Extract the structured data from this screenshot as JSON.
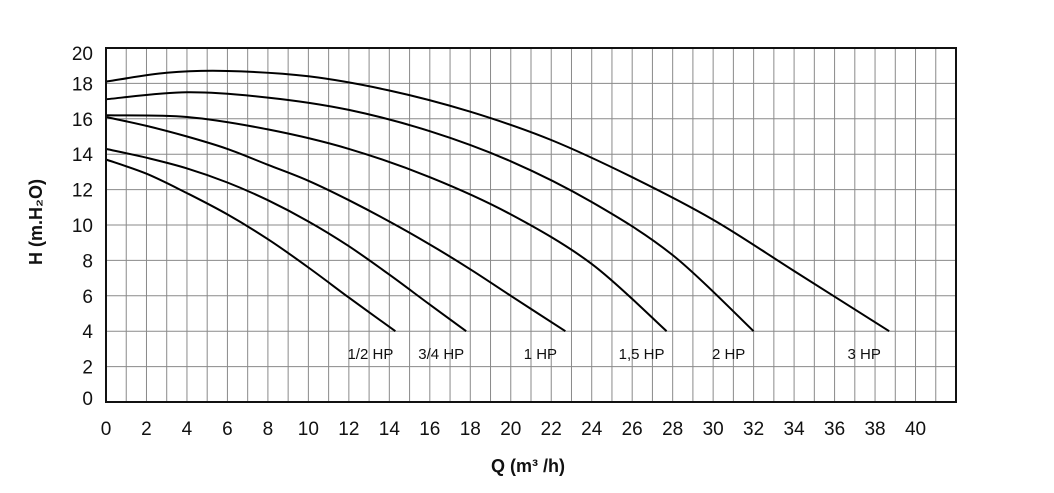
{
  "chart_data": {
    "type": "line",
    "title": "",
    "xlabel": "Q (m³ /h)",
    "ylabel": "H (m.H₂O)",
    "xlim": [
      0,
      42
    ],
    "ylim": [
      0,
      20
    ],
    "x_ticks": [
      "0",
      "2",
      "4",
      "6",
      "8",
      "10",
      "12",
      "14",
      "16",
      "18",
      "20",
      "22",
      "24",
      "26",
      "28",
      "30",
      "32",
      "34",
      "36",
      "38",
      "40"
    ],
    "y_ticks": [
      "0",
      "2",
      "4",
      "6",
      "8",
      "10",
      "12",
      "14",
      "16",
      "18",
      "20"
    ],
    "grid": true,
    "legend": "inline labels below curve ends",
    "series": [
      {
        "name": "1/2 HP",
        "points": [
          [
            0,
            13.7
          ],
          [
            2,
            12.9
          ],
          [
            4,
            11.8
          ],
          [
            6,
            10.6
          ],
          [
            8,
            9.2
          ],
          [
            10,
            7.6
          ],
          [
            12,
            5.9
          ],
          [
            14.3,
            4.0
          ]
        ]
      },
      {
        "name": "3/4 HP",
        "points": [
          [
            0,
            14.3
          ],
          [
            2,
            13.8
          ],
          [
            4,
            13.2
          ],
          [
            6,
            12.4
          ],
          [
            8,
            11.4
          ],
          [
            10,
            10.2
          ],
          [
            12,
            8.8
          ],
          [
            14,
            7.2
          ],
          [
            16,
            5.5
          ],
          [
            17.8,
            4.0
          ]
        ]
      },
      {
        "name": "1 HP",
        "points": [
          [
            0,
            16.1
          ],
          [
            2,
            15.6
          ],
          [
            4,
            15.0
          ],
          [
            6,
            14.3
          ],
          [
            8,
            13.4
          ],
          [
            10,
            12.5
          ],
          [
            12,
            11.4
          ],
          [
            14,
            10.2
          ],
          [
            16,
            8.9
          ],
          [
            18,
            7.5
          ],
          [
            20,
            6.0
          ],
          [
            22.7,
            4.0
          ]
        ]
      },
      {
        "name": "1,5 HP",
        "points": [
          [
            0,
            16.2
          ],
          [
            4,
            16.1
          ],
          [
            8,
            15.4
          ],
          [
            12,
            14.3
          ],
          [
            16,
            12.7
          ],
          [
            20,
            10.6
          ],
          [
            24,
            7.8
          ],
          [
            27.7,
            4.0
          ]
        ]
      },
      {
        "name": "2 HP",
        "points": [
          [
            0,
            17.1
          ],
          [
            4,
            17.5
          ],
          [
            8,
            17.2
          ],
          [
            12,
            16.5
          ],
          [
            16,
            15.3
          ],
          [
            20,
            13.6
          ],
          [
            24,
            11.3
          ],
          [
            28,
            8.3
          ],
          [
            32,
            4.0
          ]
        ]
      },
      {
        "name": "3 HP",
        "points": [
          [
            0,
            18.1
          ],
          [
            3,
            18.6
          ],
          [
            6,
            18.7
          ],
          [
            10,
            18.4
          ],
          [
            14,
            17.6
          ],
          [
            18,
            16.4
          ],
          [
            22,
            14.8
          ],
          [
            26,
            12.7
          ],
          [
            30,
            10.3
          ],
          [
            34,
            7.4
          ],
          [
            38.7,
            4.0
          ]
        ]
      }
    ]
  }
}
